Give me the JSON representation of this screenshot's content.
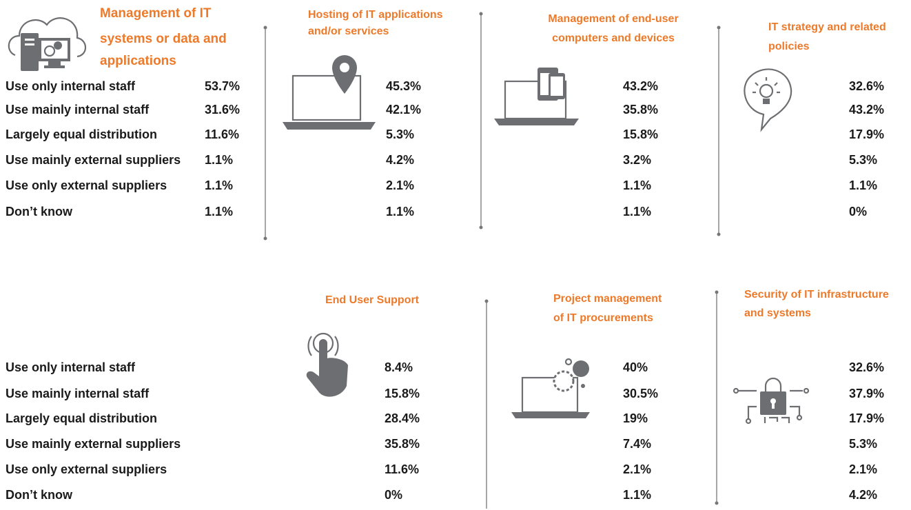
{
  "top": {
    "row_labels": [
      "Use only internal staff",
      "Use mainly internal staff",
      "Largely equal distribution",
      "Use mainly external suppliers",
      "Use only external suppliers",
      "Don’t know"
    ],
    "sections": [
      {
        "title_lines": [
          "Management of IT",
          "systems or data and",
          "applications"
        ],
        "values": [
          "53.7%",
          "31.6%",
          "11.6%",
          "1.1%",
          "1.1%",
          "1.1%"
        ]
      },
      {
        "title_lines": [
          "Hosting of IT applications",
          "and/or services"
        ],
        "values": [
          "45.3%",
          "42.1%",
          "5.3%",
          "4.2%",
          "2.1%",
          "1.1%"
        ]
      },
      {
        "title_lines": [
          "Management of end-user",
          "computers and devices"
        ],
        "values": [
          "43.2%",
          "35.8%",
          "15.8%",
          "3.2%",
          "1.1%",
          "1.1%"
        ]
      },
      {
        "title_lines": [
          "IT strategy and related",
          "policies"
        ],
        "values": [
          "32.6%",
          "43.2%",
          "17.9%",
          "5.3%",
          "1.1%",
          "0%"
        ]
      }
    ]
  },
  "bottom": {
    "row_labels": [
      "Use only internal staff",
      "Use mainly internal staff",
      "Largely equal distribution",
      "Use mainly external suppliers",
      "Use only external suppliers",
      "Don’t know"
    ],
    "sections": [
      {
        "title_lines": [
          "End User Support"
        ],
        "values": [
          "8.4%",
          "15.8%",
          "28.4%",
          "35.8%",
          "11.6%",
          "0%"
        ]
      },
      {
        "title_lines": [
          "Project management",
          "of IT procurements"
        ],
        "values": [
          "40%",
          "30.5%",
          "19%",
          "7.4%",
          "2.1%",
          "1.1%"
        ]
      },
      {
        "title_lines": [
          "Security of IT infrastructure",
          "and systems"
        ],
        "values": [
          "32.6%",
          "37.9%",
          "17.9%",
          "5.3%",
          "2.1%",
          "4.2%"
        ]
      }
    ]
  }
}
